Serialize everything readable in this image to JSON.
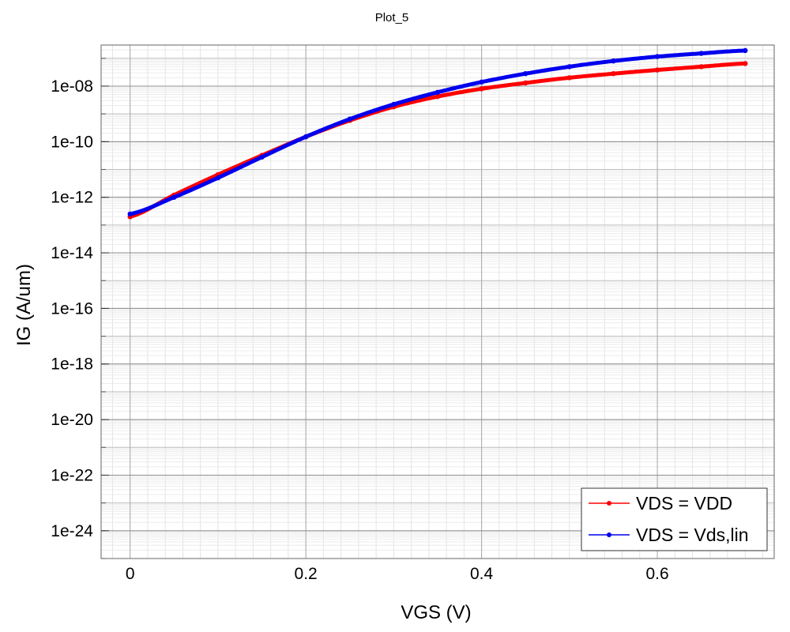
{
  "chart_data": {
    "type": "line",
    "title": "Plot_5",
    "xlabel": "VGS (V)",
    "ylabel": "IG (A/um)",
    "yscale": "log",
    "xlim": [
      -0.033,
      0.733
    ],
    "ylim": [
      1e-25,
      3e-07
    ],
    "xticks": [
      0,
      0.2,
      0.4,
      0.6
    ],
    "xtick_labels": [
      "0",
      "0.2",
      "0.4",
      "0.6"
    ],
    "yticks": [
      1e-08,
      1e-10,
      1e-12,
      1e-14,
      1e-16,
      1e-18,
      1e-20,
      1e-22,
      1e-24
    ],
    "ytick_labels": [
      "1e-08",
      "1e-10",
      "1e-12",
      "1e-14",
      "1e-16",
      "1e-18",
      "1e-20",
      "1e-22",
      "1e-24"
    ],
    "grid": true,
    "legend_position": "bottom-right",
    "series": [
      {
        "name": "VDS = VDD",
        "color": "#ff0000",
        "x": [
          0,
          0.05,
          0.1,
          0.15,
          0.2,
          0.25,
          0.3,
          0.35,
          0.4,
          0.45,
          0.5,
          0.55,
          0.6,
          0.65,
          0.7
        ],
        "y": [
          2e-13,
          1.2e-12,
          6.5e-12,
          3.2e-11,
          1.5e-10,
          5.8e-10,
          1.8e-09,
          4.2e-09,
          8e-09,
          1.3e-08,
          2e-08,
          2.8e-08,
          3.8e-08,
          5e-08,
          6.5e-08
        ]
      },
      {
        "name": "VDS = Vds,lin",
        "color": "#0000ee",
        "x": [
          0,
          0.05,
          0.1,
          0.15,
          0.2,
          0.25,
          0.3,
          0.35,
          0.4,
          0.45,
          0.5,
          0.55,
          0.6,
          0.65,
          0.7
        ],
        "y": [
          2.5e-13,
          1e-12,
          5e-12,
          2.8e-11,
          1.5e-10,
          6.5e-10,
          2.2e-09,
          6e-09,
          1.4e-08,
          2.8e-08,
          5e-08,
          8e-08,
          1.15e-07,
          1.5e-07,
          1.9e-07
        ]
      }
    ]
  }
}
